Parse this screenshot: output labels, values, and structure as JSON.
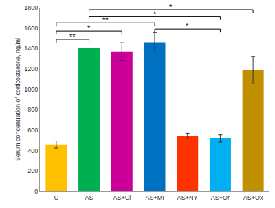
{
  "chart_data": {
    "type": "bar",
    "y_label": "Serum concentration of corticosterone, ng/ml",
    "categories": [
      "C",
      "AS",
      "AS+Cl",
      "AS+MI",
      "AS+NY",
      "AS+Or",
      "AS+Ox"
    ],
    "values": [
      460,
      1405,
      1370,
      1460,
      545,
      520,
      1190
    ],
    "errors": [
      35,
      0,
      85,
      95,
      25,
      35,
      130
    ],
    "colors": [
      "#ffc000",
      "#00b050",
      "#cc0099",
      "#0070c0",
      "#ff3300",
      "#00b0f0",
      "#c09000"
    ],
    "ylim": [
      0,
      1800
    ],
    "yticks": [
      0,
      200,
      400,
      600,
      800,
      1000,
      1200,
      1400,
      1600,
      1800
    ],
    "grid": false,
    "annotations": [
      {
        "text": "**",
        "from": "C",
        "to": "AS",
        "y": 1490
      },
      {
        "text": "*",
        "from": "C",
        "to": "AS+Cl",
        "y": 1570
      },
      {
        "text": "**",
        "from": "C",
        "to": "AS+MI",
        "y": 1650
      },
      {
        "text": "*",
        "from": "AS",
        "to": "AS+Or",
        "y": 1715
      },
      {
        "text": "*",
        "from": "AS",
        "to": "AS+Ox",
        "y": 1780
      },
      {
        "text": "*",
        "from": "AS+MI",
        "to": "AS+Or",
        "y": 1590
      }
    ]
  }
}
